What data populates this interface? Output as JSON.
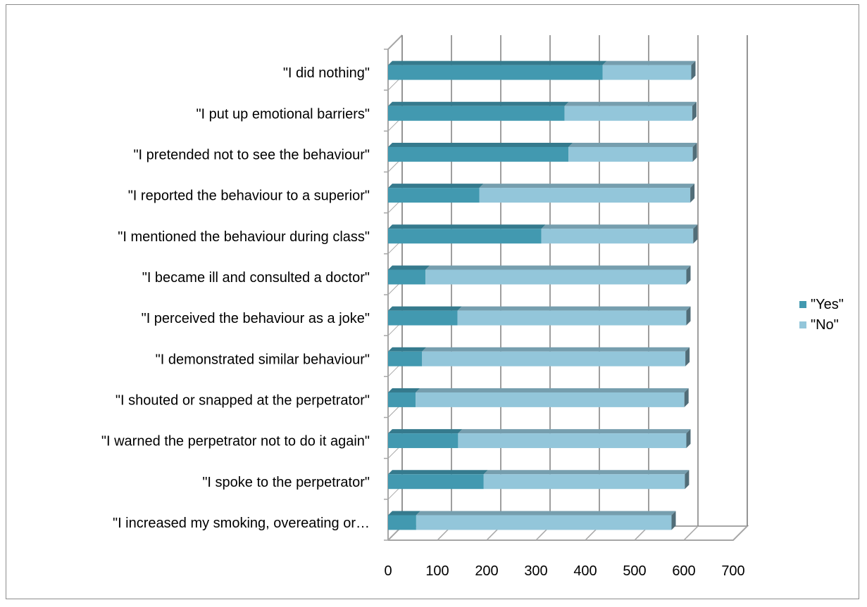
{
  "chart_data": {
    "type": "bar",
    "orientation": "horizontal",
    "stacked": true,
    "style": "3d",
    "categories": [
      "\"I did nothing\"",
      "\"I put up emotional barriers\"",
      "\"I pretended not to see the behaviour\"",
      "\"I reported the behaviour to a superior\"",
      "\"I mentioned the behaviour during class\"",
      "\"I became ill and consulted a doctor\"",
      "\"I perceived the behaviour as a joke\"",
      "\"I demonstrated similar behaviour\"",
      "\"I shouted or snapped at the perpetrator\"",
      "\"I warned the perpetrator not to do it again\"",
      "\"I spoke to the perpetrator\"",
      "\"I increased my smoking, overeating or…"
    ],
    "series": [
      {
        "name": "\"Yes\"",
        "color": "#4299b0",
        "values": [
          435,
          358,
          366,
          185,
          311,
          76,
          141,
          69,
          56,
          142,
          194,
          57
        ]
      },
      {
        "name": "\"No\"",
        "color": "#93c6da",
        "values": [
          180,
          259,
          252,
          428,
          308,
          529,
          464,
          534,
          545,
          463,
          408,
          518
        ]
      }
    ],
    "xlim": [
      0,
      700
    ],
    "xticks": [
      "0",
      "100",
      "200",
      "300",
      "400",
      "500",
      "600",
      "700"
    ],
    "title": "",
    "xlabel": "",
    "ylabel": "",
    "grid": true,
    "legend_position": "right"
  }
}
